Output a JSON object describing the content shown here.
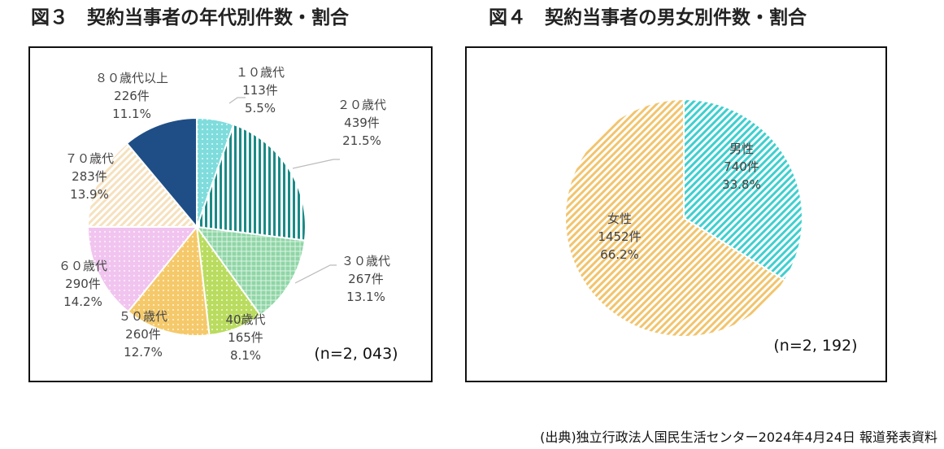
{
  "page": {
    "source": "(出典)独立行政法人国民生活センター2024年4月24日 報道発表資料"
  },
  "chart_data": [
    {
      "type": "pie",
      "title": "図３　契約当事者の年代別件数・割合",
      "n_label": "(n=2, 043)",
      "slices": [
        {
          "name": "１０歳代",
          "count": "113件",
          "percent": "5.5%",
          "value": 5.5,
          "color": "#7fdcdc",
          "pattern": "dots"
        },
        {
          "name": "２０歳代",
          "count": "439件",
          "percent": "21.5%",
          "value": 21.5,
          "color": "#1a8a86",
          "pattern": "vlines"
        },
        {
          "name": "３０歳代",
          "count": "267件",
          "percent": "13.1%",
          "value": 13.1,
          "color": "#8fd6a6",
          "pattern": "grid"
        },
        {
          "name": "40歳代",
          "count": "165件",
          "percent": "8.1%",
          "value": 8.1,
          "color": "#b9dc5f",
          "pattern": "dots"
        },
        {
          "name": "５０歳代",
          "count": "260件",
          "percent": "12.7%",
          "value": 12.7,
          "color": "#f5c96a",
          "pattern": "dots"
        },
        {
          "name": "６０歳代",
          "count": "290件",
          "percent": "14.2%",
          "value": 14.2,
          "color": "#f1c4ef",
          "pattern": "dots"
        },
        {
          "name": "７０歳代",
          "count": "283件",
          "percent": "13.9%",
          "value": 13.9,
          "color": "#f6e1be",
          "pattern": "diag"
        },
        {
          "name": "８０歳代以上",
          "count": "226件",
          "percent": "11.1%",
          "value": 11.1,
          "color": "#1f4e86",
          "pattern": "solid"
        }
      ]
    },
    {
      "type": "pie",
      "title": "図４　契約当事者の男女別件数・割合",
      "n_label": "(n=2, 192)",
      "slices": [
        {
          "name": "男性",
          "count": "740件",
          "percent": "33.8%",
          "value": 33.8,
          "color": "#3fcfcf",
          "pattern": "diag"
        },
        {
          "name": "女性",
          "count": "1452件",
          "percent": "66.2%",
          "value": 66.2,
          "color": "#f2c46d",
          "pattern": "diag"
        }
      ]
    }
  ]
}
